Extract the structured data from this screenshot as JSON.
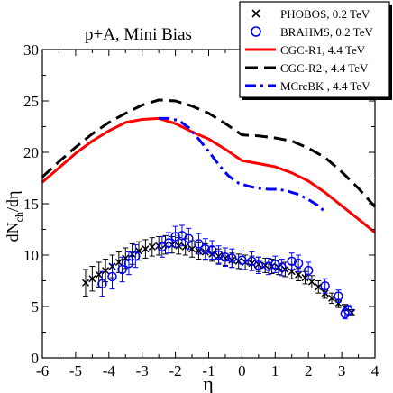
{
  "chart_data": {
    "type": "line",
    "title": "p+A, Mini Bias",
    "xlabel": "η",
    "ylabel": "dN_ch/dη",
    "ylabel_main": "dN",
    "ylabel_sub": "ch",
    "ylabel_tail": "/dη",
    "xlim": [
      -6,
      4
    ],
    "ylim": [
      0,
      30
    ],
    "xticks": [
      -6,
      -5,
      -4,
      -3,
      -2,
      -1,
      0,
      1,
      2,
      3,
      4
    ],
    "yticks": [
      0,
      5,
      10,
      15,
      20,
      25,
      30
    ],
    "legend_position": "top-right",
    "series": [
      {
        "name": "PHOBOS, 0.2 TeV",
        "kind": "points",
        "marker": "x",
        "color": "#000000",
        "x": [
          -4.7,
          -4.5,
          -4.3,
          -4.1,
          -3.9,
          -3.7,
          -3.5,
          -3.3,
          -3.1,
          -2.9,
          -2.7,
          -2.5,
          -2.3,
          -2.1,
          -1.9,
          -1.7,
          -1.5,
          -1.3,
          -1.1,
          -0.9,
          -0.7,
          -0.5,
          -0.3,
          -0.1,
          0.1,
          0.3,
          0.5,
          0.7,
          0.9,
          1.1,
          1.3,
          1.5,
          1.7,
          1.9,
          2.1,
          2.3,
          2.5,
          2.7,
          2.9,
          3.1,
          3.3
        ],
        "y": [
          7.3,
          7.7,
          8.1,
          8.5,
          8.9,
          9.3,
          9.7,
          10.1,
          10.4,
          10.6,
          10.8,
          10.9,
          11.0,
          11.0,
          10.9,
          10.8,
          10.6,
          10.4,
          10.3,
          10.1,
          9.9,
          9.7,
          9.5,
          9.4,
          9.3,
          9.2,
          9.1,
          9.0,
          8.9,
          8.8,
          8.6,
          8.4,
          8.1,
          7.8,
          7.4,
          6.9,
          6.3,
          5.8,
          5.3,
          4.9,
          4.4
        ],
        "errors": [
          1.3,
          1.2,
          1.2,
          1.1,
          1.1,
          1.0,
          1.0,
          1.0,
          0.9,
          0.9,
          0.9,
          0.9,
          0.9,
          0.8,
          0.8,
          0.8,
          0.8,
          0.8,
          0.8,
          0.7,
          0.7,
          0.7,
          0.7,
          0.7,
          0.7,
          0.7,
          0.7,
          0.7,
          0.7,
          0.7,
          0.7,
          0.7,
          0.6,
          0.6,
          0.6,
          0.6,
          0.5,
          0.5,
          0.4,
          0.3,
          0.3
        ]
      },
      {
        "name": "BRAHMS, 0.2 TeV",
        "kind": "points",
        "marker": "circle",
        "color": "#0000ff",
        "x": [
          -4.2,
          -3.9,
          -3.6,
          -3.4,
          -3.2,
          -2.4,
          -2.2,
          -2.0,
          -1.8,
          -1.6,
          -1.3,
          -1.1,
          -0.9,
          -0.7,
          -0.5,
          -0.3,
          0.0,
          0.3,
          0.5,
          0.8,
          1.0,
          1.2,
          1.5,
          1.7,
          2.0,
          2.5,
          2.9,
          3.1,
          3.2
        ],
        "y": [
          7.2,
          7.9,
          8.6,
          9.2,
          9.9,
          10.8,
          11.2,
          11.8,
          11.9,
          11.6,
          11.1,
          10.6,
          10.5,
          10.0,
          9.8,
          9.7,
          9.5,
          9.4,
          9.0,
          8.9,
          9.1,
          8.8,
          9.4,
          9.2,
          8.5,
          7.0,
          6.0,
          4.3,
          4.6
        ],
        "errors": [
          1.2,
          1.2,
          1.2,
          1.1,
          1.1,
          1.0,
          1.0,
          1.0,
          1.0,
          1.0,
          1.0,
          1.0,
          0.9,
          0.9,
          0.9,
          0.9,
          0.9,
          0.9,
          0.8,
          0.8,
          0.8,
          0.8,
          0.8,
          0.8,
          0.8,
          0.7,
          0.6,
          0.5,
          0.5
        ]
      },
      {
        "name": "CGC-R1, 4.4 TeV",
        "kind": "line",
        "style": "solid",
        "color": "#ff0000",
        "x": [
          -6,
          -5.5,
          -5,
          -4.5,
          -4,
          -3.5,
          -3,
          -2.5,
          -2,
          -1.5,
          -1,
          -0.5,
          0,
          0.5,
          1,
          1.5,
          2,
          2.5,
          3,
          3.5,
          4
        ],
        "y": [
          17.1,
          18.5,
          19.9,
          21.1,
          22.1,
          22.9,
          23.2,
          23.3,
          22.8,
          22.0,
          21.3,
          20.3,
          19.2,
          18.9,
          18.6,
          18.0,
          17.2,
          16.1,
          14.8,
          13.5,
          12.2
        ]
      },
      {
        "name": "CGC-R2 , 4.4 TeV",
        "kind": "line",
        "style": "dashed",
        "color": "#000000",
        "x": [
          -6,
          -5.5,
          -5,
          -4.5,
          -4,
          -3.5,
          -3,
          -2.5,
          -2,
          -1.5,
          -1,
          -0.5,
          0,
          0.5,
          1,
          1.5,
          2,
          2.5,
          3,
          3.5,
          4
        ],
        "y": [
          17.6,
          19.1,
          20.5,
          21.8,
          22.9,
          23.8,
          24.6,
          25.1,
          25.0,
          24.5,
          23.8,
          22.8,
          21.7,
          21.6,
          21.4,
          21.1,
          20.4,
          19.5,
          18.1,
          16.5,
          14.7
        ]
      },
      {
        "name": "MCrcBK , 4.4 TeV",
        "kind": "line",
        "style": "dashdot",
        "color": "#0000ff",
        "x": [
          -2.5,
          -2.2,
          -1.9,
          -1.6,
          -1.3,
          -1.0,
          -0.7,
          -0.4,
          -0.1,
          0.2,
          0.5,
          0.8,
          1.1,
          1.4,
          1.7,
          2.0,
          2.3,
          2.5
        ],
        "y": [
          23.3,
          23.3,
          23.1,
          22.4,
          21.3,
          20.1,
          18.8,
          17.7,
          17.0,
          16.7,
          16.5,
          16.4,
          16.4,
          16.2,
          15.9,
          15.4,
          14.8,
          14.2
        ]
      }
    ]
  }
}
